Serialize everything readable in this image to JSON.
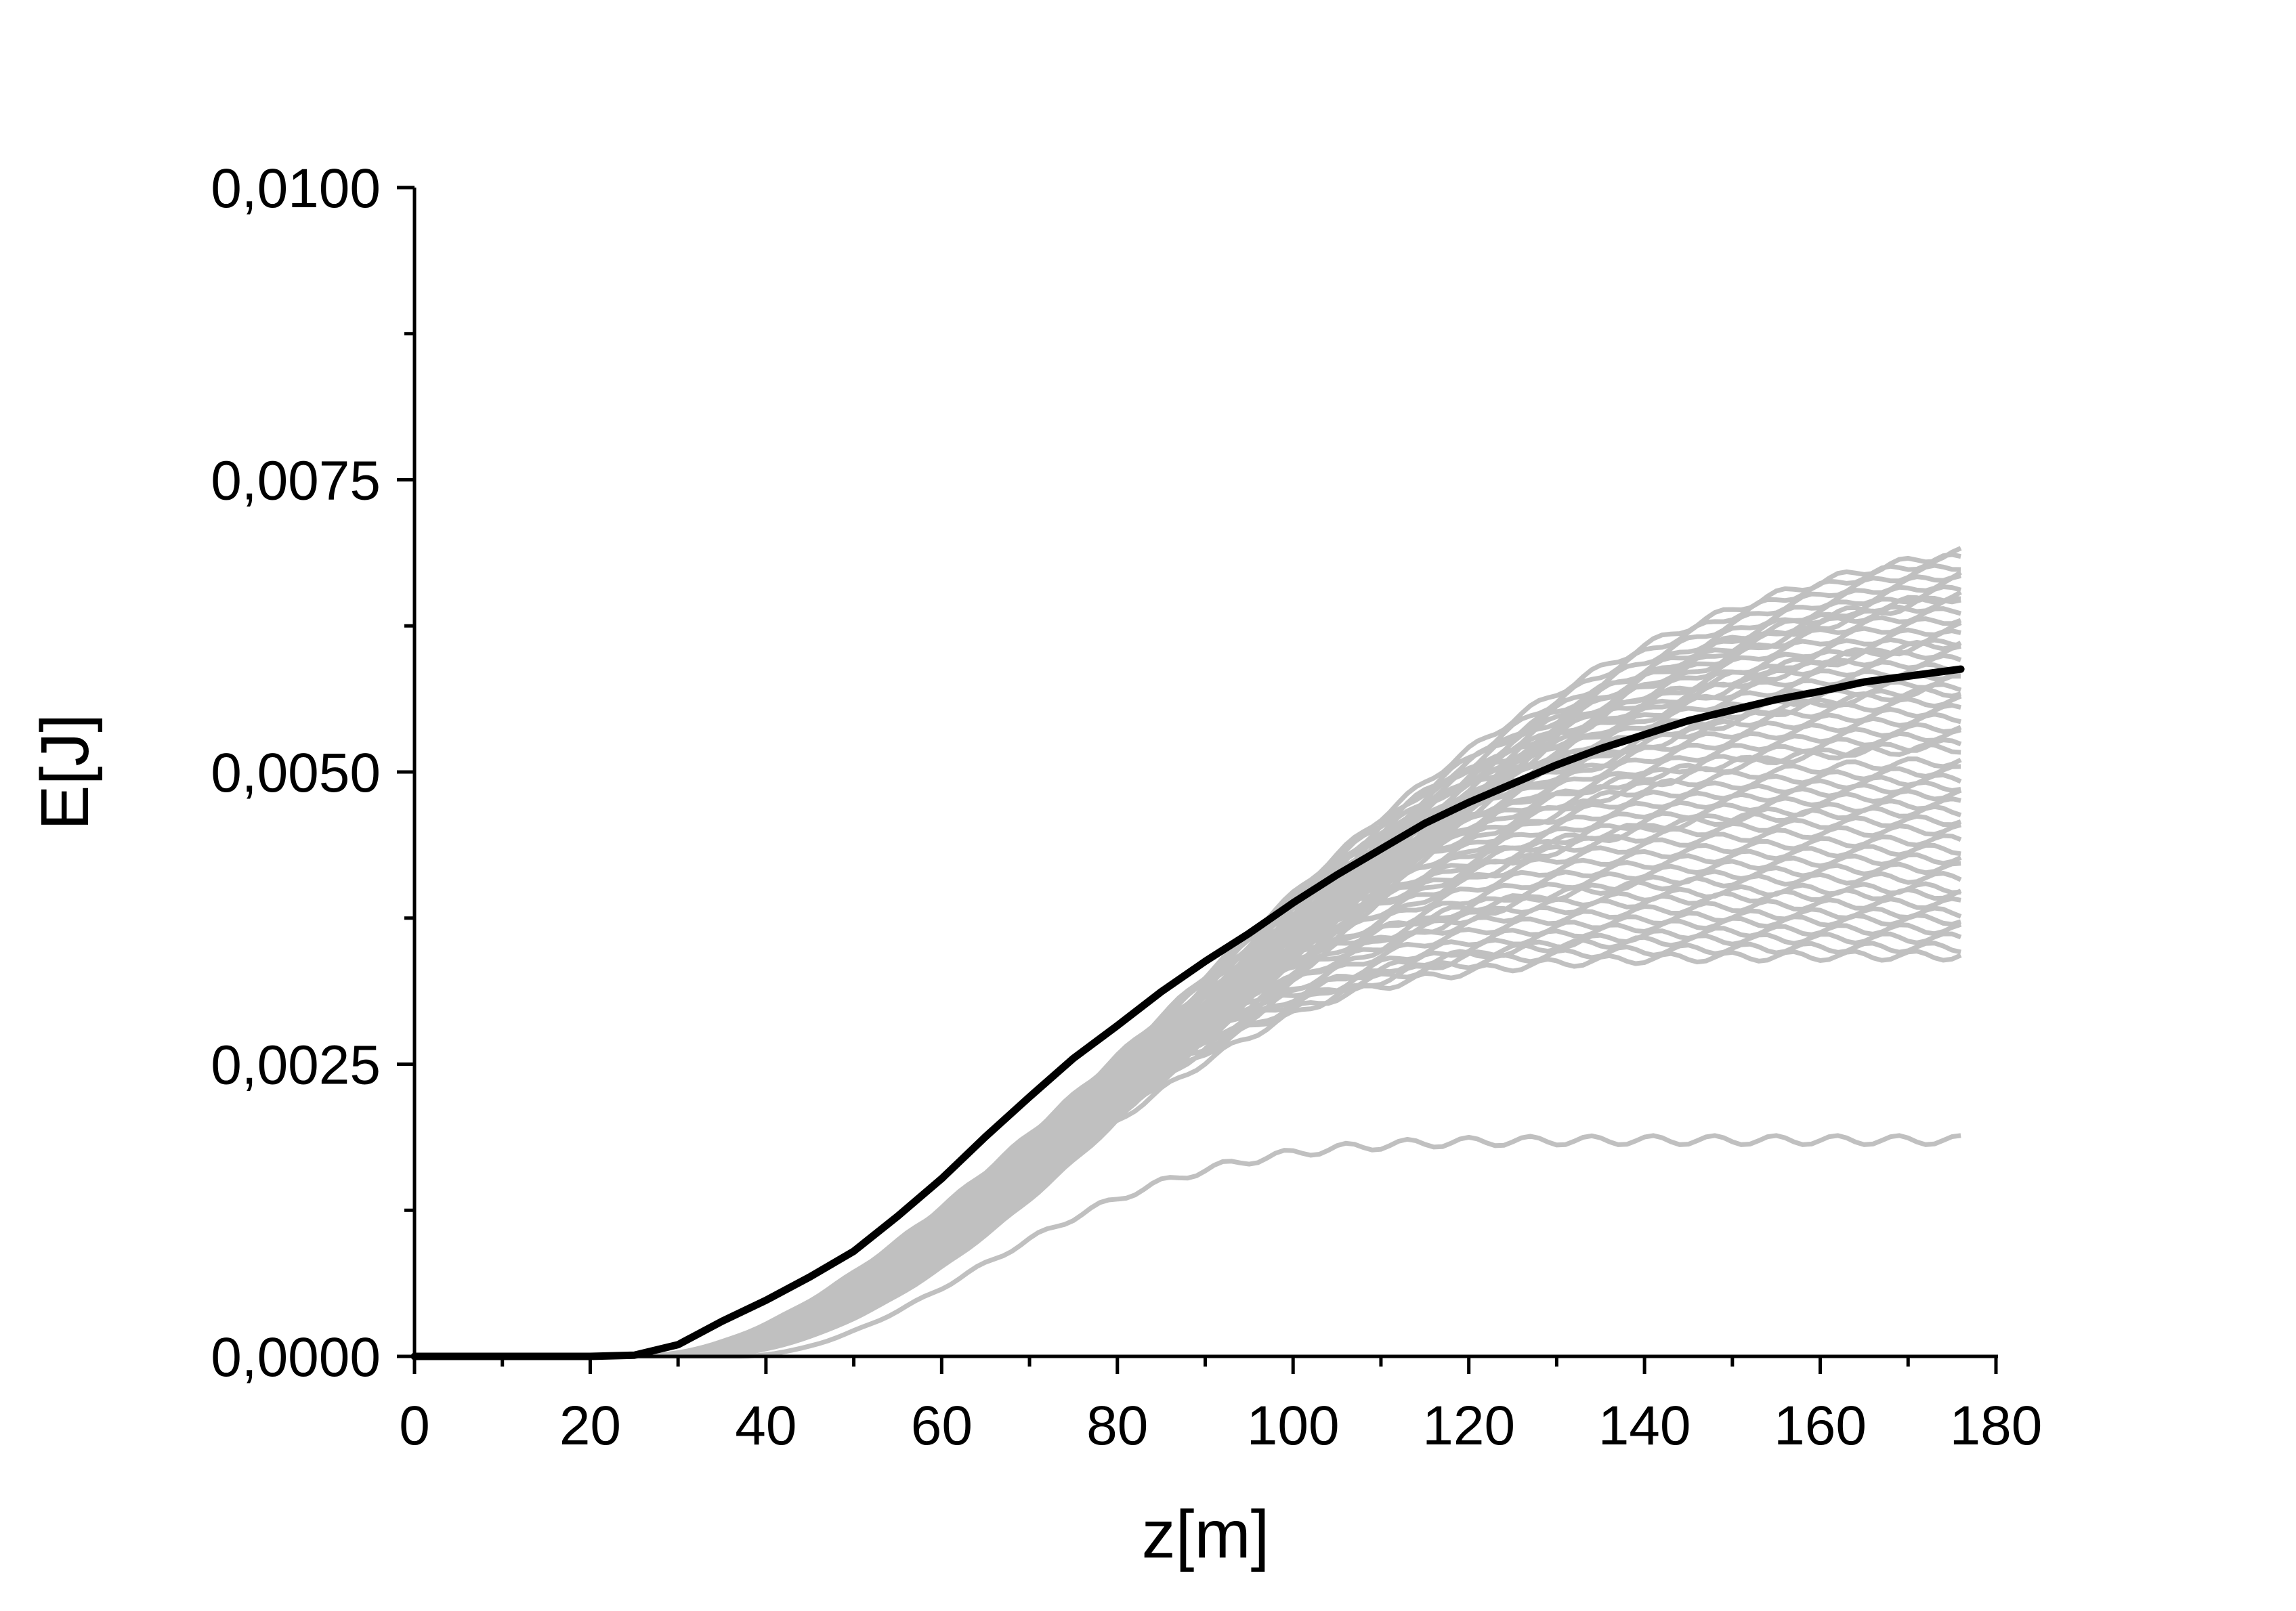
{
  "chart_data": {
    "type": "line",
    "title": "",
    "xlabel": "z[m]",
    "ylabel": "E[J]",
    "xlim": [
      0,
      180
    ],
    "ylim": [
      0,
      0.01
    ],
    "x_ticks": [
      0,
      20,
      40,
      60,
      80,
      100,
      120,
      140,
      160,
      180
    ],
    "x_tick_labels": [
      "0",
      "20",
      "40",
      "60",
      "80",
      "100",
      "120",
      "140",
      "160",
      "180"
    ],
    "y_ticks": [
      0,
      0.0025,
      0.005,
      0.0075,
      0.01
    ],
    "y_tick_labels": [
      "0,0000",
      "0,0025",
      "0,0050",
      "0,0075",
      "0,0100"
    ],
    "grid": false,
    "legend": "none",
    "colors": {
      "ensemble": "#c0c0c0",
      "mean": "#000000"
    },
    "ensemble_final_values": [
      0.00715,
      0.00712,
      0.00705,
      0.00698,
      0.00692,
      0.00685,
      0.00678,
      0.0067,
      0.00664,
      0.00657,
      0.0065,
      0.00642,
      0.00636,
      0.0063,
      0.00622,
      0.00615,
      0.00608,
      0.00602,
      0.00596,
      0.0059,
      0.00584,
      0.00576,
      0.00568,
      0.0056,
      0.00553,
      0.00545,
      0.00538,
      0.0053,
      0.00524,
      0.00512,
      0.00504,
      0.00497,
      0.00491,
      0.00484,
      0.00476,
      0.00468,
      0.0046,
      0.00452,
      0.00443,
      0.00435,
      0.00427,
      0.00419,
      0.0041,
      0.00401,
      0.00396,
      0.00388,
      0.0038,
      0.00374,
      0.00366,
      0.00358,
      0.0035,
      0.00343,
      0.00185
    ],
    "series": [
      {
        "x": [
          0,
          10,
          20,
          25,
          30,
          35,
          40,
          45,
          50,
          55,
          60,
          65,
          70,
          75,
          80,
          85,
          90,
          95,
          100,
          105,
          110,
          115,
          120,
          125,
          130,
          135,
          140,
          145,
          150,
          155,
          160,
          165,
          170,
          176
        ],
        "y": [
          0,
          0,
          0,
          1e-05,
          0.0001,
          0.0003,
          0.00048,
          0.00068,
          0.0009,
          0.0012,
          0.00152,
          0.00188,
          0.00222,
          0.00255,
          0.00283,
          0.00312,
          0.00338,
          0.00362,
          0.00388,
          0.00412,
          0.00434,
          0.00456,
          0.00474,
          0.0049,
          0.00506,
          0.0052,
          0.00532,
          0.00544,
          0.00553,
          0.00562,
          0.00569,
          0.00577,
          0.00582,
          0.00588
        ]
      }
    ]
  }
}
